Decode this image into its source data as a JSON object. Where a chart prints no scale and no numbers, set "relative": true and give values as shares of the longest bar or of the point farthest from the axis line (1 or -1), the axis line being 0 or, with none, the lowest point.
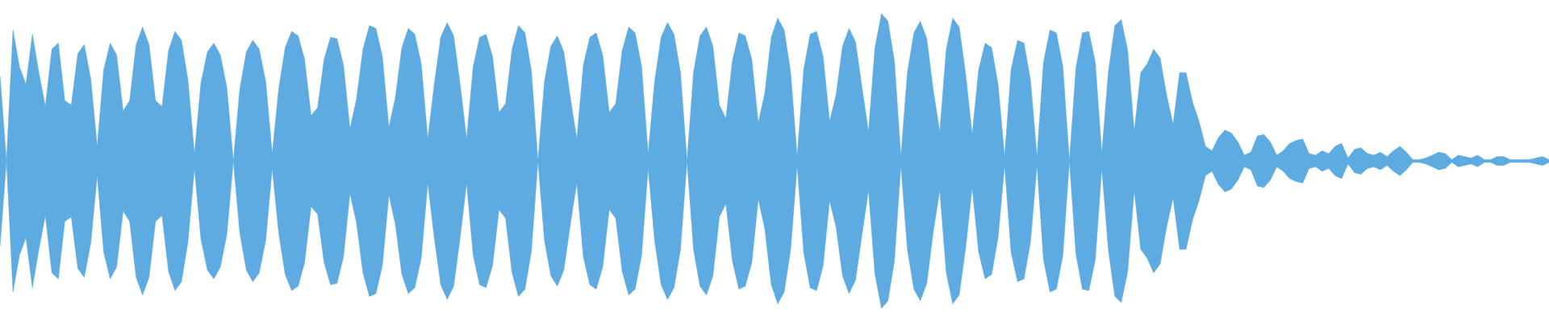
{
  "chart_data": {
    "type": "area",
    "relative": true,
    "categories": [
      null,
      null,
      null,
      null,
      null,
      null,
      null,
      null,
      null,
      null,
      null,
      null,
      null,
      null,
      null,
      null,
      null,
      null,
      null,
      null,
      null,
      null,
      null,
      null,
      null,
      null,
      null,
      null,
      null,
      null,
      null,
      null,
      null,
      null,
      null,
      null,
      null,
      null,
      null,
      null,
      null,
      null,
      null,
      null,
      null,
      null,
      null,
      null,
      null,
      null,
      null,
      null,
      null,
      null,
      null,
      null,
      null,
      null,
      null,
      null,
      null,
      null,
      null,
      null,
      null,
      null,
      null,
      null,
      null,
      null,
      null,
      null,
      null,
      null,
      null,
      null,
      null,
      null,
      null,
      null,
      null,
      null,
      null,
      null,
      null,
      null,
      null,
      null,
      null,
      null,
      null,
      null,
      null,
      null,
      null,
      null,
      null,
      null,
      null,
      null,
      null,
      null,
      null,
      null,
      null,
      null,
      null,
      null,
      null,
      null,
      null,
      null,
      null,
      null,
      null,
      null,
      null,
      null,
      null,
      null,
      null,
      null,
      null,
      null,
      null,
      null,
      null,
      null,
      null,
      null,
      null,
      null,
      null,
      null,
      null,
      null,
      null,
      null,
      null,
      null,
      null,
      null,
      null,
      null,
      null,
      null,
      null,
      null,
      null,
      null,
      null,
      null,
      null,
      null,
      null,
      null,
      null,
      null,
      null,
      null,
      null,
      null,
      null,
      null,
      null,
      null,
      null,
      null,
      null,
      null,
      null,
      null,
      null,
      null,
      null,
      null,
      null,
      null,
      null,
      null,
      null,
      null,
      null,
      null,
      null,
      null,
      null,
      null,
      null,
      null,
      null,
      null,
      null,
      null,
      null,
      null,
      null,
      null,
      null,
      null,
      null,
      null,
      null,
      null,
      null,
      null,
      null,
      null,
      null,
      null,
      null,
      null,
      null,
      null,
      null,
      null,
      null,
      null,
      null,
      null,
      null,
      null,
      null,
      null,
      null,
      null,
      null,
      null,
      null,
      null,
      null,
      null,
      null,
      null,
      null,
      null,
      null,
      null,
      null,
      null
    ],
    "series": [
      {
        "color": "#5dabe1",
        "values": [
          0.58,
          0,
          0.89,
          0.64,
          0.52,
          0.86,
          0.6,
          0.37,
          0.76,
          0.8,
          0.41,
          0.38,
          0.73,
          0.79,
          0.56,
          0.1,
          0.62,
          0.8,
          0.72,
          0.34,
          0.41,
          0.79,
          0.91,
          0.79,
          0.41,
          0.37,
          0.75,
          0.88,
          0.82,
          0.55,
          0.05,
          0.53,
          0.74,
          0.8,
          0.72,
          0.5,
          0,
          0.49,
          0.74,
          0.82,
          0.76,
          0.54,
          0.05,
          0.49,
          0.77,
          0.88,
          0.85,
          0.69,
          0.31,
          0.36,
          0.69,
          0.84,
          0.83,
          0.65,
          0.22,
          0.42,
          0.76,
          0.92,
          0.9,
          0.71,
          0.23,
          0.43,
          0.77,
          0.9,
          0.86,
          0.66,
          0.15,
          0.52,
          0.84,
          0.94,
          0.85,
          0.52,
          0.15,
          0.64,
          0.84,
          0.86,
          0.71,
          0.33,
          0.39,
          0.76,
          0.92,
          0.87,
          0.61,
          0,
          0.54,
          0.78,
          0.85,
          0.74,
          0.43,
          0.15,
          0.65,
          0.84,
          0.87,
          0.72,
          0.33,
          0.39,
          0.75,
          0.91,
          0.87,
          0.64,
          0.05,
          0.54,
          0.84,
          0.94,
          0.86,
          0.6,
          0,
          0.6,
          0.85,
          0.91,
          0.78,
          0.38,
          0.29,
          0.68,
          0.87,
          0.85,
          0.69,
          0.26,
          0.46,
          0.84,
          0.97,
          0.89,
          0.6,
          0.03,
          0.62,
          0.86,
          0.88,
          0.71,
          0.27,
          0.45,
          0.78,
          0.9,
          0.81,
          0.5,
          0.2,
          0.77,
          1,
          0.95,
          0.68,
          0.03,
          0.6,
          0.87,
          0.95,
          0.83,
          0.48,
          0.2,
          0.76,
          0.97,
          0.91,
          0.59,
          0.18,
          0.62,
          0.8,
          0.77,
          0.52,
          0.03,
          0.62,
          0.82,
          0.8,
          0.55,
          0.03,
          0.67,
          0.89,
          0.87,
          0.64,
          0,
          0.63,
          0.87,
          0.88,
          0.67,
          0.05,
          0.6,
          0.92,
          0.96,
          0.75,
          0.2,
          0.6,
          0.66,
          0.76,
          0.7,
          0.45,
          0.25,
          0.6,
          0.6,
          0.4,
          0.27,
          0.1,
          0.07,
          0.16,
          0.21,
          0.19,
          0.13,
          0.04,
          0.06,
          0.17,
          0.18,
          0.13,
          0.04,
          0.07,
          0.12,
          0.14,
          0.15,
          0.05,
          0.04,
          0.07,
          0.05,
          0.1,
          0.12,
          0.02,
          0.08,
          0.09,
          0.05,
          0.04,
          0.06,
          0.03,
          0.07,
          0.1,
          0.06,
          0.01,
          0.01,
          0.02,
          0.04,
          0.06,
          0.05,
          0.01,
          0.04,
          0.03,
          0.02,
          0.04,
          0.01,
          0.01,
          0.03,
          0.03,
          0.01,
          0.01,
          0.01,
          0.01,
          0.02,
          0.03,
          0.01
        ]
      },
      {
        "color": "#5dabe1",
        "values": [
          -0.58,
          0,
          -0.89,
          -0.64,
          -0.52,
          -0.86,
          -0.6,
          -0.37,
          -0.76,
          -0.8,
          -0.41,
          -0.38,
          -0.73,
          -0.79,
          -0.56,
          -0.1,
          -0.62,
          -0.8,
          -0.72,
          -0.34,
          -0.41,
          -0.79,
          -0.91,
          -0.79,
          -0.41,
          -0.37,
          -0.75,
          -0.88,
          -0.82,
          -0.55,
          -0.05,
          -0.53,
          -0.74,
          -0.8,
          -0.72,
          -0.5,
          0,
          -0.49,
          -0.74,
          -0.82,
          -0.76,
          -0.54,
          -0.05,
          -0.49,
          -0.77,
          -0.88,
          -0.85,
          -0.69,
          -0.31,
          -0.36,
          -0.69,
          -0.84,
          -0.83,
          -0.65,
          -0.22,
          -0.42,
          -0.76,
          -0.92,
          -0.9,
          -0.71,
          -0.23,
          -0.43,
          -0.77,
          -0.9,
          -0.86,
          -0.66,
          -0.15,
          -0.52,
          -0.84,
          -0.94,
          -0.85,
          -0.52,
          -0.15,
          -0.64,
          -0.84,
          -0.86,
          -0.71,
          -0.33,
          -0.39,
          -0.76,
          -0.92,
          -0.87,
          -0.61,
          0,
          -0.54,
          -0.78,
          -0.85,
          -0.74,
          -0.43,
          -0.15,
          -0.65,
          -0.84,
          -0.87,
          -0.72,
          -0.33,
          -0.39,
          -0.75,
          -0.91,
          -0.87,
          -0.64,
          -0.05,
          -0.54,
          -0.84,
          -0.94,
          -0.86,
          -0.6,
          0,
          -0.6,
          -0.85,
          -0.91,
          -0.78,
          -0.38,
          -0.29,
          -0.68,
          -0.87,
          -0.85,
          -0.69,
          -0.26,
          -0.46,
          -0.84,
          -0.97,
          -0.89,
          -0.6,
          -0.03,
          -0.62,
          -0.86,
          -0.88,
          -0.71,
          -0.27,
          -0.45,
          -0.78,
          -0.9,
          -0.81,
          -0.5,
          -0.2,
          -0.77,
          -1,
          -0.95,
          -0.68,
          -0.03,
          -0.6,
          -0.87,
          -0.95,
          -0.83,
          -0.48,
          -0.2,
          -0.76,
          -0.97,
          -0.91,
          -0.59,
          -0.18,
          -0.62,
          -0.8,
          -0.77,
          -0.52,
          -0.03,
          -0.62,
          -0.82,
          -0.8,
          -0.55,
          -0.03,
          -0.67,
          -0.89,
          -0.87,
          -0.64,
          0,
          -0.63,
          -0.87,
          -0.88,
          -0.67,
          -0.05,
          -0.6,
          -0.92,
          -0.96,
          -0.75,
          -0.2,
          -0.6,
          -0.66,
          -0.76,
          -0.7,
          -0.45,
          -0.25,
          -0.6,
          -0.6,
          -0.4,
          -0.27,
          -0.1,
          -0.07,
          -0.16,
          -0.21,
          -0.19,
          -0.13,
          -0.04,
          -0.06,
          -0.17,
          -0.18,
          -0.13,
          -0.04,
          -0.07,
          -0.12,
          -0.14,
          -0.15,
          -0.05,
          -0.04,
          -0.07,
          -0.05,
          -0.1,
          -0.12,
          -0.02,
          -0.08,
          -0.09,
          -0.05,
          -0.04,
          -0.06,
          -0.03,
          -0.07,
          -0.1,
          -0.06,
          -0.01,
          -0.01,
          -0.02,
          -0.04,
          -0.06,
          -0.05,
          -0.01,
          -0.04,
          -0.03,
          -0.02,
          -0.04,
          -0.01,
          -0.01,
          -0.03,
          -0.03,
          -0.01,
          -0.01,
          -0.01,
          -0.01,
          -0.02,
          -0.03,
          -0.01
        ]
      }
    ]
  }
}
